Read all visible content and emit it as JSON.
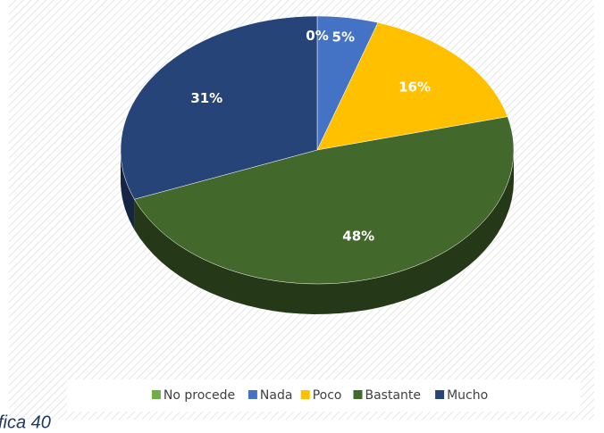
{
  "chart_data": {
    "type": "pie3d",
    "categories": [
      "No procede",
      "Nada",
      "Poco",
      "Bastante",
      "Mucho"
    ],
    "values": [
      0,
      5,
      16,
      48,
      31
    ],
    "value_labels": [
      "0%",
      "5%",
      "16%",
      "48%",
      "31%"
    ],
    "colors": [
      "#70ad47",
      "#4472c4",
      "#ffc000",
      "#43682b",
      "#264478"
    ],
    "legend": "bottom",
    "caption": "fica 40"
  }
}
